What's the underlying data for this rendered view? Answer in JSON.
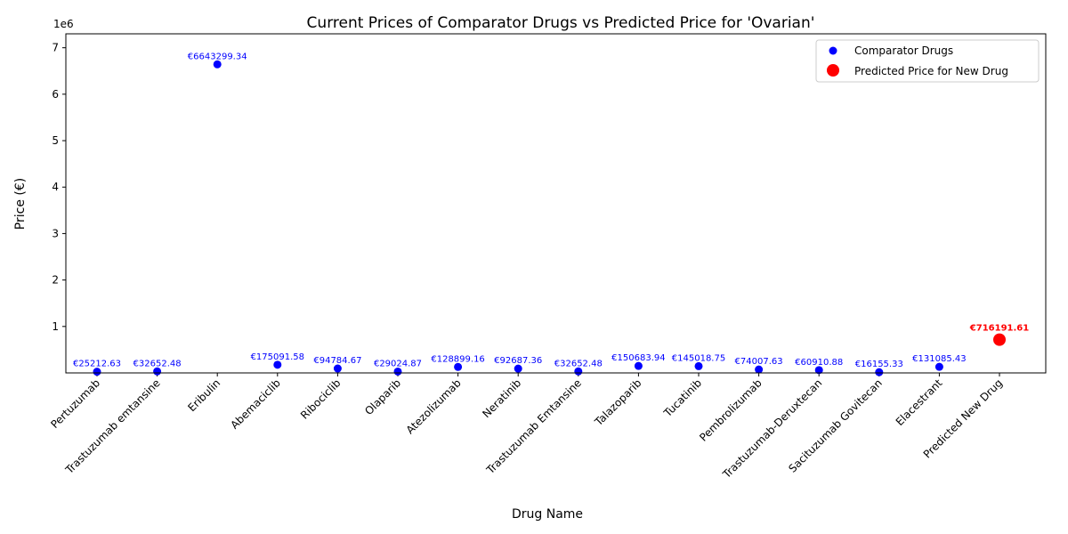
{
  "chart_data": {
    "type": "scatter",
    "title": "Current Prices of Comparator Drugs vs Predicted Price for 'Ovarian'",
    "xlabel": "Drug Name",
    "ylabel": "Price (€)",
    "y_offset_label": "1e6",
    "ylim": [
      0,
      7300000
    ],
    "y_ticks": [
      1000000,
      2000000,
      3000000,
      4000000,
      5000000,
      6000000,
      7000000
    ],
    "y_tick_labels": [
      "1",
      "2",
      "3",
      "4",
      "5",
      "6",
      "7"
    ],
    "grid": false,
    "legend_position": "top-right",
    "categories": [
      "Pertuzumab",
      "Trastuzumab emtansine",
      "Eribulin",
      "Abemaciclib",
      "Ribociclib",
      "Olaparib",
      "Atezolizumab",
      "Neratinib",
      "Trastuzumab Emtansine",
      "Talazoparib",
      "Tucatinib",
      "Pembrolizumab",
      "Trastuzumab-Deruxtecan",
      "Sacituzumab Govitecan",
      "Elacestrant",
      "Predicted New Drug"
    ],
    "series": [
      {
        "name": "Comparator Drugs",
        "color": "#0000ff",
        "points": [
          {
            "x": "Pertuzumab",
            "y": 25212.63,
            "label": "€25212.63"
          },
          {
            "x": "Trastuzumab emtansine",
            "y": 32652.48,
            "label": "€32652.48"
          },
          {
            "x": "Eribulin",
            "y": 6643299.34,
            "label": "€6643299.34"
          },
          {
            "x": "Abemaciclib",
            "y": 175091.58,
            "label": "€175091.58"
          },
          {
            "x": "Ribociclib",
            "y": 94784.67,
            "label": "€94784.67"
          },
          {
            "x": "Olaparib",
            "y": 29024.87,
            "label": "€29024.87"
          },
          {
            "x": "Atezolizumab",
            "y": 128899.16,
            "label": "€128899.16"
          },
          {
            "x": "Neratinib",
            "y": 92687.36,
            "label": "€92687.36"
          },
          {
            "x": "Trastuzumab Emtansine",
            "y": 32652.48,
            "label": "€32652.48"
          },
          {
            "x": "Talazoparib",
            "y": 150683.94,
            "label": "€150683.94"
          },
          {
            "x": "Tucatinib",
            "y": 145018.75,
            "label": "€145018.75"
          },
          {
            "x": "Pembrolizumab",
            "y": 74007.63,
            "label": "€74007.63"
          },
          {
            "x": "Trastuzumab-Deruxtecan",
            "y": 60910.88,
            "label": "€60910.88"
          },
          {
            "x": "Sacituzumab Govitecan",
            "y": 16155.33,
            "label": "€16155.33"
          },
          {
            "x": "Elacestrant",
            "y": 131085.43,
            "label": "€131085.43"
          }
        ]
      },
      {
        "name": "Predicted Price for New Drug",
        "color": "#ff0000",
        "points": [
          {
            "x": "Predicted New Drug",
            "y": 716191.61,
            "label": "€716191.61"
          }
        ]
      }
    ]
  }
}
